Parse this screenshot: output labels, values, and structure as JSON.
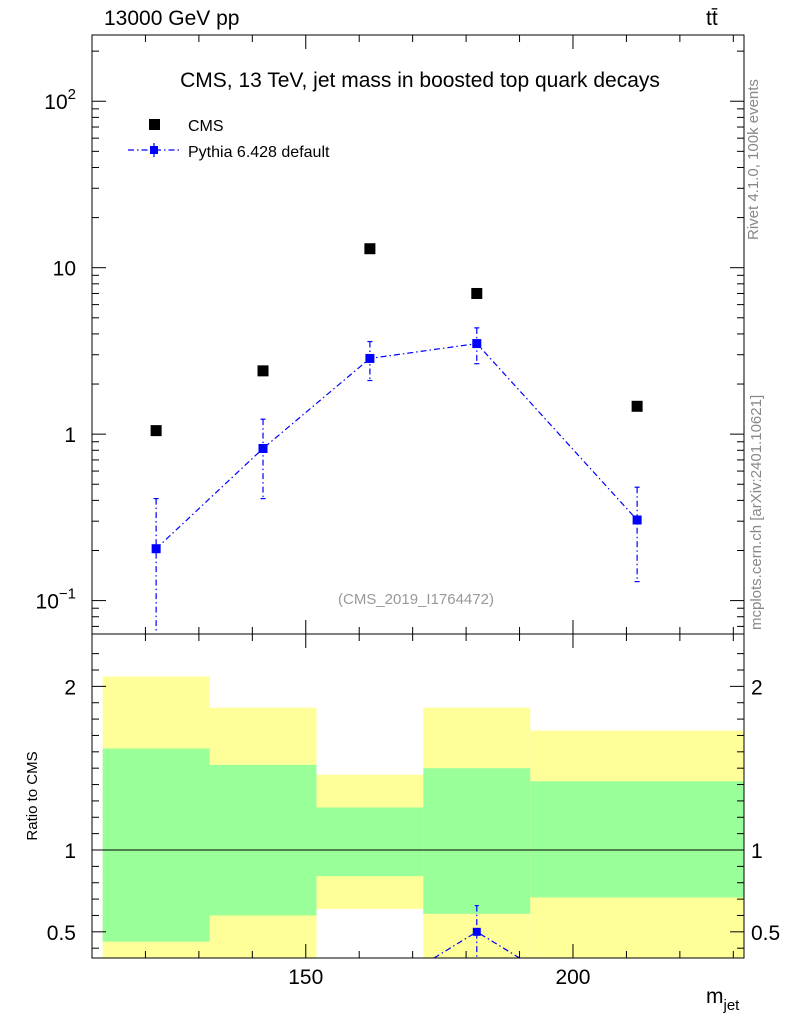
{
  "header": {
    "energy_label": "13000 GeV pp",
    "process_label": "tt̄"
  },
  "side_labels": {
    "rivet": "Rivet 4.1.0,  100k events",
    "source": "mcplots.cern.ch [arXiv:2401.10621]"
  },
  "chart_data": {
    "type": "scatter",
    "title": "CMS, 13 TeV, jet mass in boosted top quark decays",
    "analysis_id": "(CMS_2019_I1764472)",
    "xlabel": "m",
    "xlabel_sub": "jet",
    "xlim": [
      110,
      232
    ],
    "x_ticks": [
      150,
      200
    ],
    "ylim_log": [
      0.063,
      250
    ],
    "y_ticks": [
      {
        "value": 0.1,
        "base": "10",
        "exp": "−1"
      },
      {
        "value": 1,
        "base": "1",
        "exp": ""
      },
      {
        "value": 10,
        "base": "10",
        "exp": ""
      },
      {
        "value": 100,
        "base": "10",
        "exp": "2"
      }
    ],
    "bins": [
      {
        "lo": 112,
        "hi": 132
      },
      {
        "lo": 132,
        "hi": 152
      },
      {
        "lo": 152,
        "hi": 172
      },
      {
        "lo": 172,
        "hi": 192
      },
      {
        "lo": 192,
        "hi": 232
      }
    ],
    "series": [
      {
        "name": "CMS",
        "color": "#000000",
        "x": [
          122,
          142,
          162,
          182,
          212
        ],
        "y": [
          1.05,
          2.4,
          13.0,
          7.0,
          1.47
        ]
      },
      {
        "name": "Pythia 6.428 default",
        "color": "#0000ff",
        "x": [
          122,
          142,
          162,
          182,
          212
        ],
        "y": [
          0.205,
          0.82,
          2.85,
          3.5,
          0.305
        ],
        "err_lo": [
          0.205,
          0.41,
          0.75,
          0.85,
          0.175
        ],
        "err_hi": [
          0.205,
          0.41,
          0.75,
          0.85,
          0.175
        ]
      }
    ],
    "ratio": {
      "ylabel": "Ratio to CMS",
      "ylim": [
        0.34,
        2.32
      ],
      "y_ticks": [
        0.5,
        1,
        2
      ],
      "y_tick_labels": [
        "0.5",
        "1",
        "2"
      ],
      "band_green": [
        [
          0.44,
          1.62
        ],
        [
          0.6,
          1.52
        ],
        [
          0.84,
          1.26
        ],
        [
          0.61,
          1.5
        ],
        [
          0.71,
          1.42
        ]
      ],
      "band_yellow": [
        [
          0.0,
          2.06
        ],
        [
          0.0,
          1.87
        ],
        [
          0.64,
          1.46
        ],
        [
          0.0,
          1.87
        ],
        [
          0.0,
          1.73
        ]
      ],
      "pythia_point": {
        "x": 182,
        "y": 0.5,
        "err": 0.16
      },
      "pythia_line_to": {
        "x": 190,
        "y": 0.34
      }
    }
  }
}
